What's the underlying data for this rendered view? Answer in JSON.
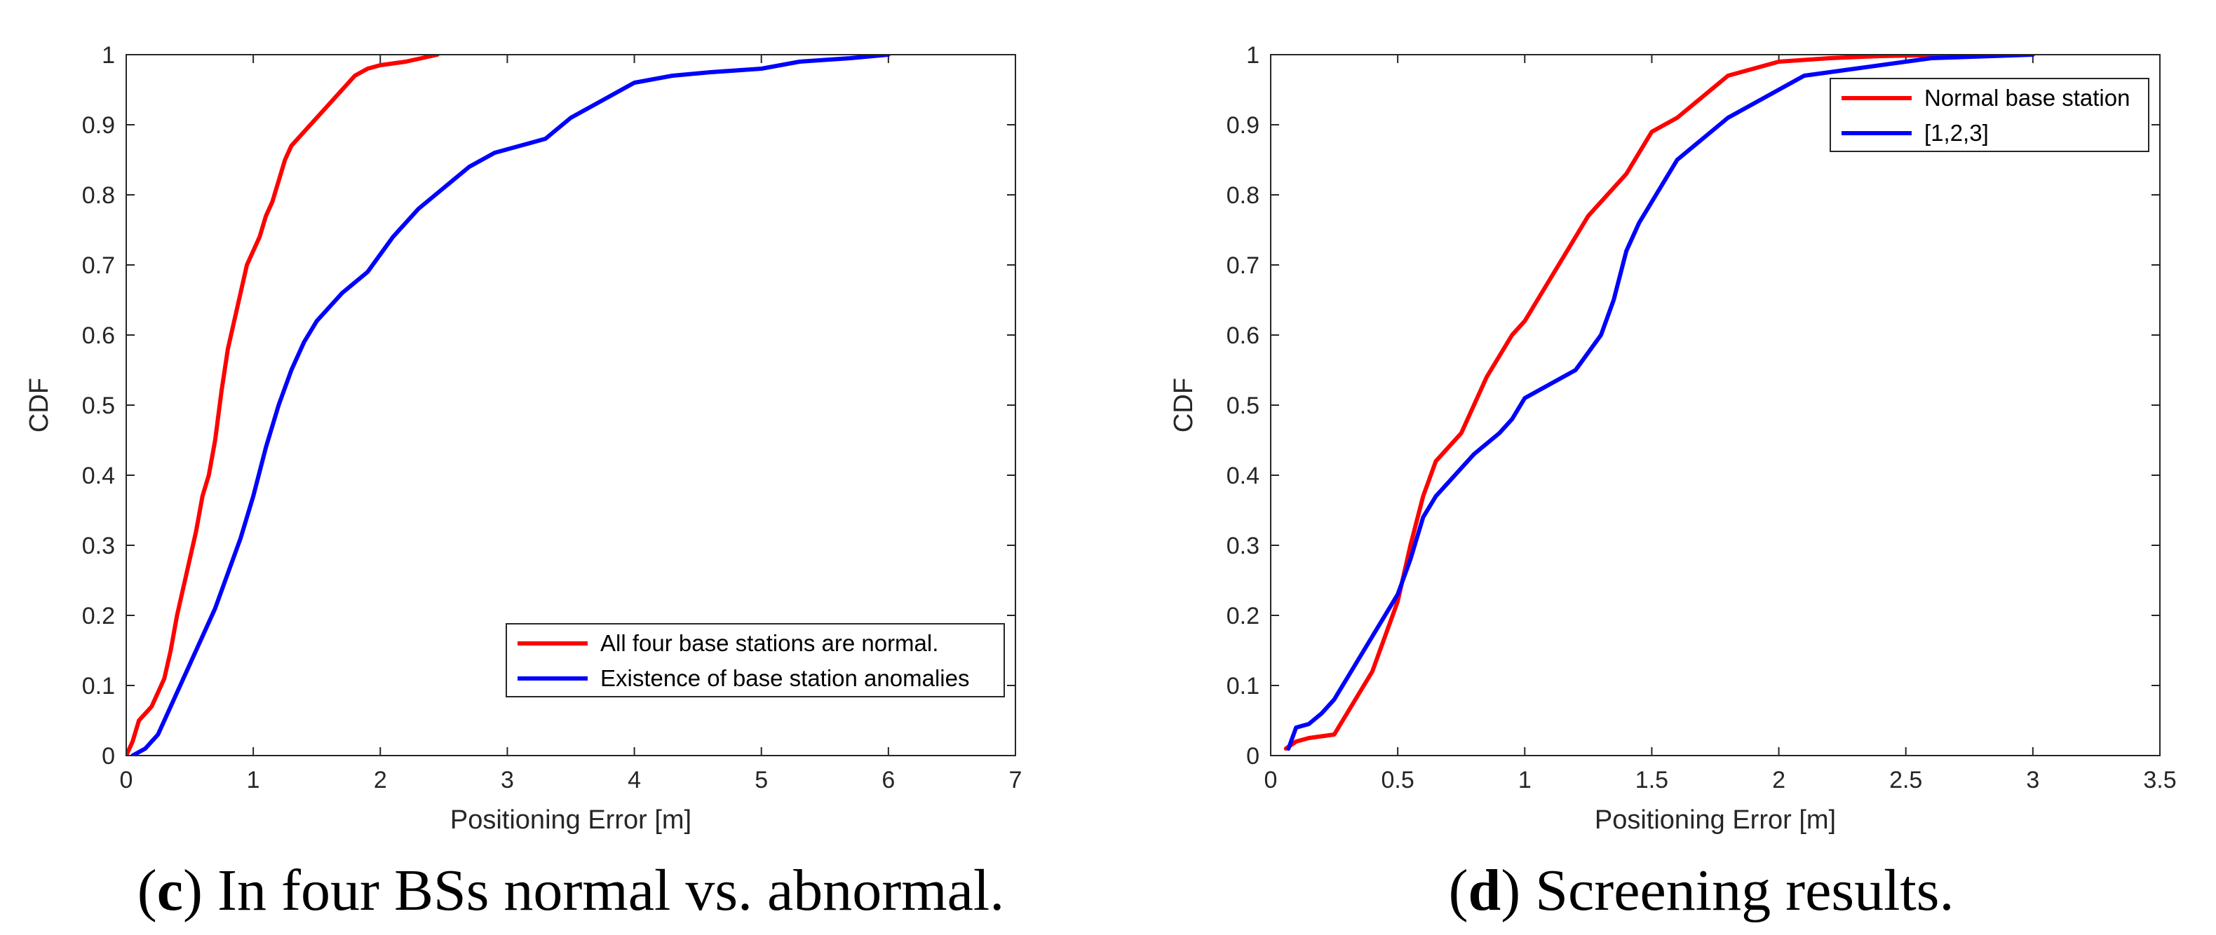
{
  "chart_data": [
    {
      "type": "line",
      "panel": "c",
      "caption_letter": "c",
      "caption_text": "In four BSs normal vs. abnormal.",
      "title": "",
      "xlabel": "Positioning Error [m]",
      "ylabel": "CDF",
      "xlim": [
        0,
        7
      ],
      "ylim": [
        0,
        1
      ],
      "xticks": [
        0,
        1,
        2,
        3,
        4,
        5,
        6,
        7
      ],
      "yticks": [
        0,
        0.1,
        0.2,
        0.3,
        0.4,
        0.5,
        0.6,
        0.7,
        0.8,
        0.9,
        1
      ],
      "xtick_labels": [
        "0",
        "1",
        "2",
        "3",
        "4",
        "5",
        "6",
        "7"
      ],
      "ytick_labels": [
        "0",
        "0.1",
        "0.2",
        "0.3",
        "0.4",
        "0.5",
        "0.6",
        "0.7",
        "0.8",
        "0.9",
        "1"
      ],
      "grid": false,
      "legend_position": "bottom-right",
      "series": [
        {
          "name": "All four base stations are normal.",
          "color": "#ff0000",
          "x": [
            0,
            0.05,
            0.1,
            0.15,
            0.2,
            0.25,
            0.3,
            0.35,
            0.4,
            0.45,
            0.5,
            0.55,
            0.6,
            0.65,
            0.7,
            0.75,
            0.8,
            0.85,
            0.9,
            0.95,
            1.0,
            1.05,
            1.1,
            1.15,
            1.2,
            1.25,
            1.3,
            1.35,
            1.4,
            1.5,
            1.6,
            1.7,
            1.8,
            1.9,
            2.0,
            2.2,
            2.45
          ],
          "values": [
            0,
            0.02,
            0.05,
            0.06,
            0.07,
            0.09,
            0.11,
            0.15,
            0.2,
            0.24,
            0.28,
            0.32,
            0.37,
            0.4,
            0.45,
            0.52,
            0.58,
            0.62,
            0.66,
            0.7,
            0.72,
            0.74,
            0.77,
            0.79,
            0.82,
            0.85,
            0.87,
            0.88,
            0.89,
            0.91,
            0.93,
            0.95,
            0.97,
            0.98,
            0.985,
            0.99,
            1.0
          ]
        },
        {
          "name": "Existence of base station anomalies",
          "color": "#0000ff",
          "x": [
            0.05,
            0.15,
            0.2,
            0.25,
            0.3,
            0.35,
            0.4,
            0.45,
            0.5,
            0.6,
            0.7,
            0.8,
            0.9,
            1.0,
            1.1,
            1.2,
            1.3,
            1.4,
            1.5,
            1.7,
            1.9,
            2.1,
            2.3,
            2.5,
            2.7,
            2.9,
            3.1,
            3.3,
            3.5,
            3.7,
            3.9,
            4.0,
            4.3,
            4.6,
            5.0,
            5.3,
            5.7,
            6.0
          ],
          "values": [
            0,
            0.01,
            0.02,
            0.03,
            0.05,
            0.07,
            0.09,
            0.11,
            0.13,
            0.17,
            0.21,
            0.26,
            0.31,
            0.37,
            0.44,
            0.5,
            0.55,
            0.59,
            0.62,
            0.66,
            0.69,
            0.74,
            0.78,
            0.81,
            0.84,
            0.86,
            0.87,
            0.88,
            0.91,
            0.93,
            0.95,
            0.96,
            0.97,
            0.975,
            0.98,
            0.99,
            0.995,
            1.0
          ]
        }
      ]
    },
    {
      "type": "line",
      "panel": "d",
      "caption_letter": "d",
      "caption_text": "Screening results.",
      "title": "",
      "xlabel": "Positioning Error [m]",
      "ylabel": "CDF",
      "xlim": [
        0,
        3.5
      ],
      "ylim": [
        0,
        1
      ],
      "xticks": [
        0,
        0.5,
        1,
        1.5,
        2,
        2.5,
        3,
        3.5
      ],
      "yticks": [
        0,
        0.1,
        0.2,
        0.3,
        0.4,
        0.5,
        0.6,
        0.7,
        0.8,
        0.9,
        1
      ],
      "xtick_labels": [
        "0",
        "0.5",
        "1",
        "1.5",
        "2",
        "2.5",
        "3",
        "3.5"
      ],
      "ytick_labels": [
        "0",
        "0.1",
        "0.2",
        "0.3",
        "0.4",
        "0.5",
        "0.6",
        "0.7",
        "0.8",
        "0.9",
        "1"
      ],
      "grid": false,
      "legend_position": "top-right",
      "series": [
        {
          "name": "Normal base station",
          "color": "#ff0000",
          "x": [
            0.06,
            0.1,
            0.15,
            0.25,
            0.3,
            0.35,
            0.4,
            0.45,
            0.5,
            0.55,
            0.6,
            0.65,
            0.7,
            0.75,
            0.8,
            0.85,
            0.9,
            0.95,
            1.0,
            1.05,
            1.1,
            1.15,
            1.2,
            1.25,
            1.3,
            1.35,
            1.4,
            1.45,
            1.5,
            1.6,
            1.7,
            1.8,
            1.9,
            2.0,
            2.2,
            2.4,
            2.7
          ],
          "values": [
            0.01,
            0.02,
            0.025,
            0.03,
            0.06,
            0.09,
            0.12,
            0.17,
            0.22,
            0.3,
            0.37,
            0.42,
            0.44,
            0.46,
            0.5,
            0.54,
            0.57,
            0.6,
            0.62,
            0.65,
            0.68,
            0.71,
            0.74,
            0.77,
            0.79,
            0.81,
            0.83,
            0.86,
            0.89,
            0.91,
            0.94,
            0.97,
            0.98,
            0.99,
            0.995,
            0.998,
            1.0
          ]
        },
        {
          "name": "[1,2,3]",
          "color": "#0000ff",
          "x": [
            0.07,
            0.1,
            0.15,
            0.2,
            0.25,
            0.3,
            0.35,
            0.4,
            0.45,
            0.5,
            0.55,
            0.6,
            0.65,
            0.7,
            0.8,
            0.9,
            0.95,
            1.0,
            1.05,
            1.1,
            1.2,
            1.3,
            1.35,
            1.4,
            1.45,
            1.5,
            1.55,
            1.6,
            1.7,
            1.8,
            1.9,
            2.0,
            2.1,
            2.3,
            2.6,
            3.0
          ],
          "values": [
            0.01,
            0.04,
            0.045,
            0.06,
            0.08,
            0.11,
            0.14,
            0.17,
            0.2,
            0.23,
            0.28,
            0.34,
            0.37,
            0.39,
            0.43,
            0.46,
            0.48,
            0.51,
            0.52,
            0.53,
            0.55,
            0.6,
            0.65,
            0.72,
            0.76,
            0.79,
            0.82,
            0.85,
            0.88,
            0.91,
            0.93,
            0.95,
            0.97,
            0.98,
            0.995,
            1.0
          ]
        }
      ]
    }
  ]
}
